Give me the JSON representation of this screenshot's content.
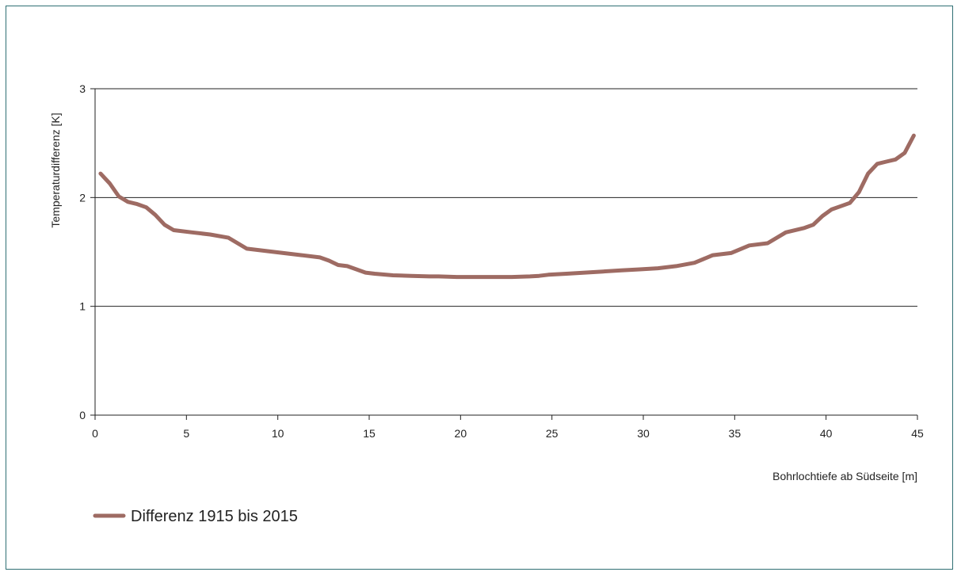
{
  "chart_data": {
    "type": "line",
    "title": "",
    "xlabel": "Bohrlochtiefe ab Südseite [m]",
    "ylabel": "Temperaturdifferenz [K]",
    "xlim": [
      0,
      45
    ],
    "ylim": [
      0,
      3
    ],
    "x_ticks": [
      0,
      5,
      10,
      15,
      20,
      25,
      30,
      35,
      40,
      45
    ],
    "y_ticks": [
      0,
      1,
      2,
      3
    ],
    "grid": "horizontal",
    "legend_position": "bottom-left",
    "series": [
      {
        "name": "Differenz 1915 bis 2015",
        "color": "#9e6b63",
        "x": [
          0.3,
          0.8,
          1.3,
          1.8,
          2.3,
          2.8,
          3.3,
          3.8,
          4.3,
          5.3,
          6.3,
          7.3,
          8.3,
          9.3,
          10.3,
          11.3,
          12.3,
          12.8,
          13.3,
          13.8,
          14.3,
          14.8,
          15.3,
          16.3,
          17.3,
          18.3,
          18.8,
          19.8,
          20.8,
          21.8,
          22.8,
          23.8,
          24.3,
          24.8,
          25.8,
          26.8,
          27.8,
          28.8,
          29.8,
          30.8,
          31.8,
          32.8,
          33.8,
          34.8,
          35.8,
          36.8,
          37.8,
          38.8,
          39.3,
          39.8,
          40.3,
          40.8,
          41.3,
          41.8,
          42.3,
          42.8,
          43.3,
          43.8,
          44.3,
          44.8
        ],
        "y": [
          2.22,
          2.13,
          2.01,
          1.96,
          1.94,
          1.91,
          1.84,
          1.75,
          1.7,
          1.68,
          1.66,
          1.63,
          1.53,
          1.51,
          1.49,
          1.47,
          1.45,
          1.42,
          1.38,
          1.37,
          1.34,
          1.31,
          1.3,
          1.285,
          1.28,
          1.275,
          1.275,
          1.27,
          1.27,
          1.27,
          1.27,
          1.275,
          1.28,
          1.29,
          1.3,
          1.31,
          1.32,
          1.33,
          1.34,
          1.35,
          1.37,
          1.4,
          1.47,
          1.49,
          1.56,
          1.58,
          1.68,
          1.72,
          1.75,
          1.83,
          1.89,
          1.92,
          1.95,
          2.05,
          2.22,
          2.31,
          2.33,
          2.35,
          2.41,
          2.57
        ]
      }
    ]
  }
}
